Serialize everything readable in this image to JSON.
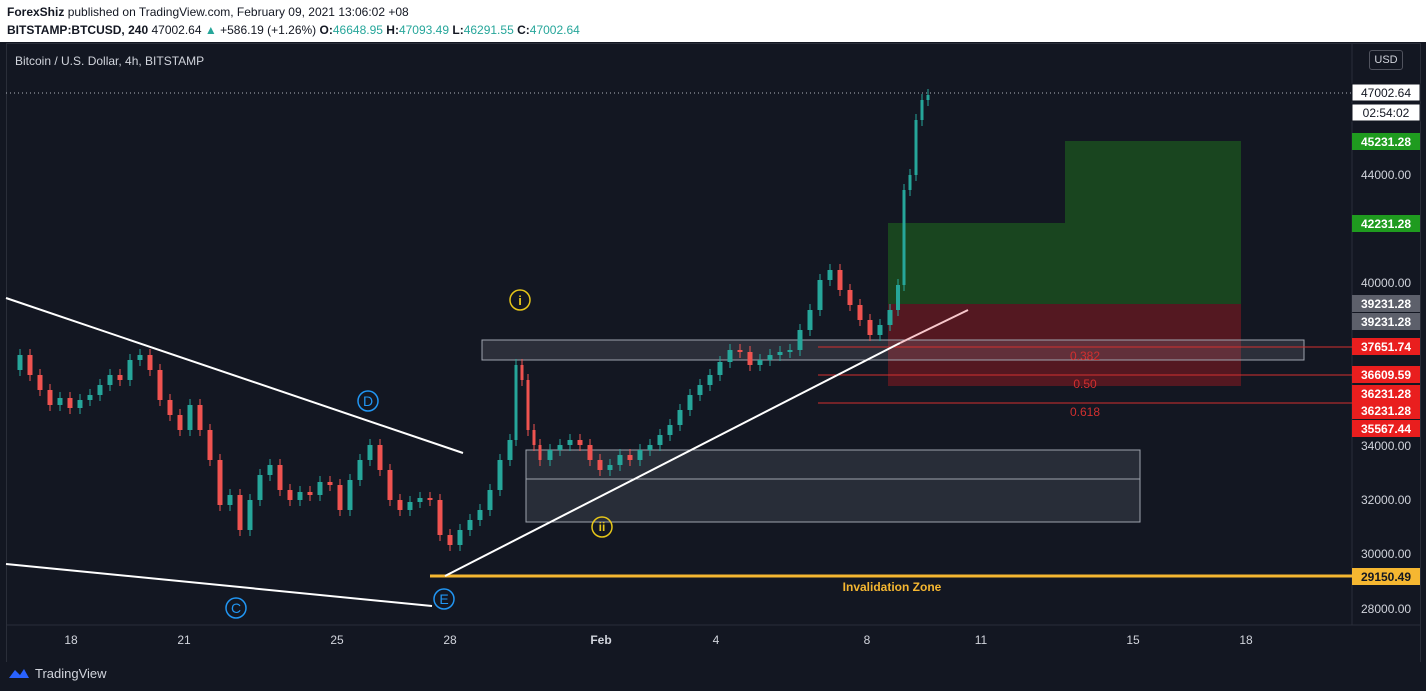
{
  "header": {
    "author": "ForexShiz",
    "published_text": "published on TradingView.com, February 09, 2021 13:06:02 +08",
    "symbol": "BITSTAMP:BTCUSD, 240",
    "last": "47002.64",
    "change": "+586.19 (+1.26%)",
    "o_label": "O:",
    "o_value": "46648.95",
    "h_label": "H:",
    "h_value": "47093.49",
    "l_label": "L:",
    "l_value": "46291.55",
    "c_label": "C:",
    "c_value": "47002.64"
  },
  "legend": "Bitcoin / U.S. Dollar, 4h, BITSTAMP",
  "currency": "USD",
  "footer": {
    "brand": "TradingView"
  },
  "colors": {
    "up": "#26a69a",
    "down": "#ef5350",
    "target": "#1e7b1e",
    "stop": "#b71c1c",
    "invalidation": "#f5b731",
    "fib": "#d32f2f"
  },
  "icons": {
    "logo": "tradingview-logo-icon"
  },
  "chart_data": {
    "type": "candlestick",
    "y_ticks": [
      "28000.00",
      "30000.00",
      "32000.00",
      "34000.00",
      "40000.00",
      "44000.00"
    ],
    "x_ticks": [
      "18",
      "21",
      "25",
      "28",
      "Feb",
      "4",
      "8",
      "11",
      "15",
      "18"
    ],
    "price_labels": [
      {
        "text": "47002.64",
        "style": "last"
      },
      {
        "text": "02:54:02",
        "style": "last"
      },
      {
        "text": "45231.28",
        "style": "green"
      },
      {
        "text": "42231.28",
        "style": "green"
      },
      {
        "text": "39231.28",
        "style": "gray"
      },
      {
        "text": "39231.28",
        "style": "gray"
      },
      {
        "text": "37651.74",
        "style": "red"
      },
      {
        "text": "36609.59",
        "style": "red"
      },
      {
        "text": "36231.28",
        "style": "red"
      },
      {
        "text": "36231.28",
        "style": "red"
      },
      {
        "text": "35567.44",
        "style": "red"
      },
      {
        "text": "29150.49",
        "style": "orange"
      }
    ],
    "fib_levels": [
      {
        "text": "0.382",
        "price": 37651.74
      },
      {
        "text": "0.50",
        "price": 36609.59
      },
      {
        "text": "0.618",
        "price": 35567.44
      }
    ],
    "wave_labels": [
      "C",
      "D",
      "E",
      "i",
      "ii"
    ],
    "annotation": "Invalidation Zone",
    "invalidation_price": 29150.49,
    "last_price": 47002.64
  }
}
